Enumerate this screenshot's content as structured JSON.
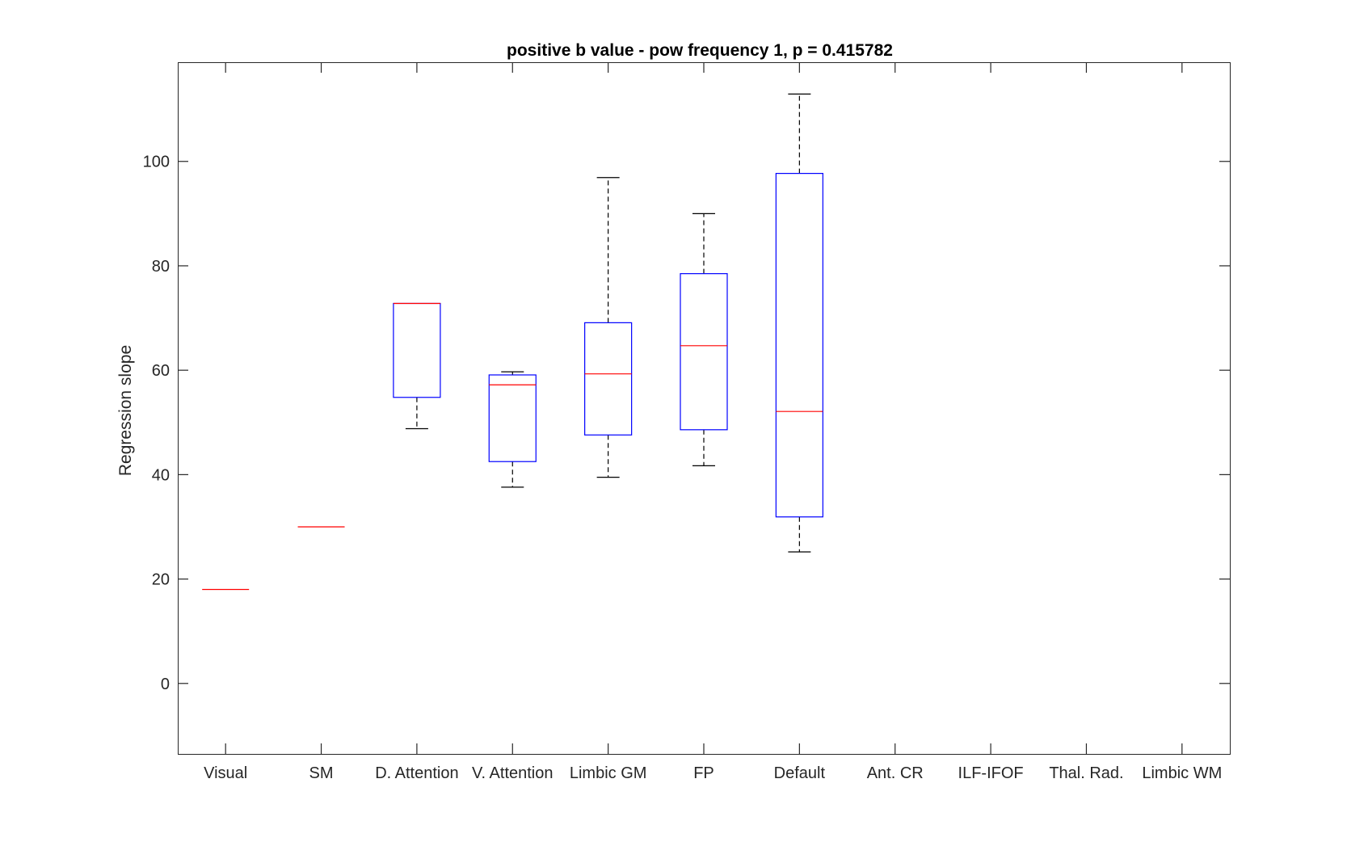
{
  "chart_data": {
    "type": "boxplot",
    "title": "positive b value - pow frequency 1, p = 0.415782",
    "xlabel": "",
    "ylabel": "Regression slope",
    "ylim": [
      -13.5,
      119
    ],
    "yticks": [
      0,
      20,
      40,
      60,
      80,
      100
    ],
    "grid": false,
    "categories": [
      "Visual",
      "SM",
      "D. Attention",
      "V. Attention",
      "Limbic GM",
      "FP",
      "Default",
      "Ant. CR",
      "ILF-IFOF",
      "Thal. Rad.",
      "Limbic WM"
    ],
    "boxes": [
      {
        "category": "Visual",
        "median": 18
      },
      {
        "category": "SM",
        "median": 30
      },
      {
        "category": "D. Attention",
        "whisker_low": 48.8,
        "q1": 54.8,
        "median": 72.8,
        "q3": 72.8,
        "whisker_high": 72.8
      },
      {
        "category": "V. Attention",
        "whisker_low": 37.6,
        "q1": 42.5,
        "median": 57.2,
        "q3": 59.1,
        "whisker_high": 59.7
      },
      {
        "category": "Limbic GM",
        "whisker_low": 39.5,
        "q1": 47.6,
        "median": 59.3,
        "q3": 69.1,
        "whisker_high": 96.9
      },
      {
        "category": "FP",
        "whisker_low": 41.7,
        "q1": 48.6,
        "median": 64.7,
        "q3": 78.5,
        "whisker_high": 90
      },
      {
        "category": "Default",
        "whisker_low": 25.2,
        "q1": 31.9,
        "median": 52.1,
        "q3": 97.7,
        "whisker_high": 112.9
      }
    ],
    "colors": {
      "box": "#0000ff",
      "median": "#ff0000",
      "whisker": "#000000",
      "axes": "#262626"
    }
  }
}
